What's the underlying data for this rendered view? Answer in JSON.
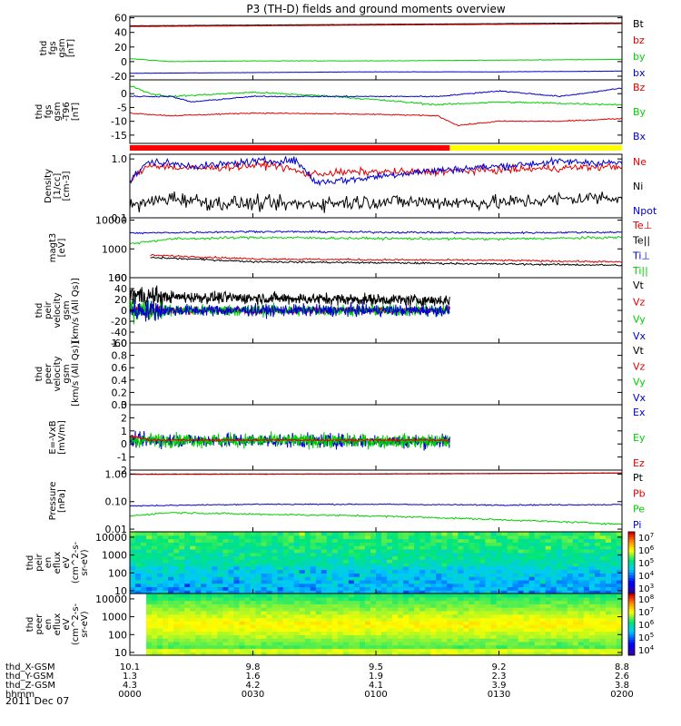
{
  "title": "P3 (TH-D) fields and ground moments overview",
  "date": "2011 Dec 07",
  "colors": {
    "black": "#000000",
    "red": "#e00000",
    "green": "#00d000",
    "blue": "#0000d0",
    "yellow": "#ffff00",
    "bar_red": "#ff0000"
  },
  "chart_data": [
    {
      "type": "line",
      "name": "fgs_gsm",
      "ylabel_lines": [
        "thd",
        "fgs",
        "gsm",
        "[nT]"
      ],
      "ylim": [
        -25,
        62
      ],
      "yticks": [
        {
          "v": 60,
          "label": "60"
        },
        {
          "v": 40,
          "label": "40"
        },
        {
          "v": 20,
          "label": "20"
        },
        {
          "v": 0,
          "label": "0"
        },
        {
          "v": -20,
          "label": "-20"
        }
      ],
      "series": [
        {
          "name": "Bt",
          "color": "black",
          "noise": 0.2,
          "x": [
            0,
            30,
            60,
            90,
            120
          ],
          "y": [
            49,
            50,
            51,
            52,
            53
          ]
        },
        {
          "name": "bz",
          "color": "red",
          "noise": 0.2,
          "x": [
            0,
            30,
            60,
            90,
            120
          ],
          "y": [
            48,
            49,
            50,
            51,
            52
          ]
        },
        {
          "name": "by",
          "color": "green",
          "noise": 0.3,
          "x": [
            0,
            10,
            30,
            60,
            90,
            120
          ],
          "y": [
            4,
            0,
            1,
            1,
            2,
            3
          ]
        },
        {
          "name": "bx",
          "color": "blue",
          "noise": 0.2,
          "x": [
            0,
            30,
            60,
            90,
            120
          ],
          "y": [
            -16,
            -15,
            -14,
            -14,
            -13
          ]
        }
      ]
    },
    {
      "type": "line",
      "name": "fgs_gsm_detrended",
      "ylabel_lines": [
        "thd",
        "fgs",
        "gsm",
        "-T96",
        "[nT]"
      ],
      "ylim": [
        -18,
        5
      ],
      "yticks": [
        {
          "v": 0,
          "label": "0"
        },
        {
          "v": -5,
          "label": "-5"
        },
        {
          "v": -10,
          "label": "-10"
        },
        {
          "v": -15,
          "label": "-15"
        }
      ],
      "series": [
        {
          "name": "Bz",
          "color": "red",
          "noise": 0.2,
          "x": [
            0,
            10,
            30,
            60,
            75,
            80,
            90,
            105,
            120
          ],
          "y": [
            -7,
            -8,
            -7,
            -7.5,
            -8,
            -11.5,
            -10,
            -10,
            -9
          ]
        },
        {
          "name": "By",
          "color": "green",
          "noise": 0.3,
          "x": [
            0,
            5,
            10,
            30,
            50,
            75,
            90,
            120
          ],
          "y": [
            3,
            0,
            -1,
            0.5,
            -1,
            -4,
            -3,
            -4
          ]
        },
        {
          "name": "Bx",
          "color": "blue",
          "noise": 0.2,
          "x": [
            0,
            10,
            15,
            30,
            60,
            75,
            90,
            105,
            120
          ],
          "y": [
            -1,
            -1,
            -3,
            -1,
            -1,
            -1,
            1,
            -1,
            2
          ]
        }
      ]
    },
    {
      "type": "log-line",
      "name": "density",
      "ylabel_lines": [
        "Density",
        "[1/cc]",
        "[cm-3]"
      ],
      "ylim": [
        0.1,
        1.2
      ],
      "yticks": [
        {
          "v": 1.0,
          "label": "1.0"
        },
        {
          "v": 0.1,
          "label": "0.1"
        }
      ],
      "series": [
        {
          "name": "Ne",
          "color": "red",
          "noise": 0.06,
          "x": [
            0,
            5,
            12,
            18,
            35,
            43,
            55,
            70,
            90,
            120
          ],
          "y": [
            0.4,
            0.8,
            0.7,
            0.7,
            0.8,
            0.55,
            0.6,
            0.6,
            0.65,
            0.75
          ]
        },
        {
          "name": "Ni",
          "color": "black",
          "noise": 0.12,
          "x": [
            0,
            10,
            20,
            40,
            60,
            90,
            120
          ],
          "y": [
            0.15,
            0.22,
            0.18,
            0.17,
            0.19,
            0.18,
            0.23
          ]
        },
        {
          "name": "Npot",
          "color": "blue",
          "noise": 0.06,
          "x": [
            0,
            5,
            12,
            18,
            30,
            40,
            45,
            55,
            70,
            90,
            105,
            120
          ],
          "y": [
            0.4,
            0.9,
            0.8,
            0.75,
            0.9,
            0.95,
            0.4,
            0.45,
            0.6,
            0.75,
            0.9,
            0.85
          ]
        }
      ]
    },
    {
      "type": "log-line",
      "name": "temperature",
      "ylabel_lines": [
        "magt3",
        "[eV]"
      ],
      "ylim": [
        100,
        12000
      ],
      "yticks": [
        {
          "v": 10000,
          "label": "10000"
        },
        {
          "v": 1000,
          "label": "1000"
        },
        {
          "v": 100,
          "label": "100"
        }
      ],
      "series": [
        {
          "name": "Te⊥",
          "color": "red",
          "noise": 0.03,
          "start": 5,
          "x": [
            5,
            30,
            60,
            90,
            120
          ],
          "y": [
            600,
            450,
            420,
            400,
            350
          ]
        },
        {
          "name": "Te||",
          "color": "black",
          "noise": 0.03,
          "start": 5,
          "x": [
            5,
            30,
            60,
            90,
            120
          ],
          "y": [
            500,
            360,
            330,
            300,
            270
          ]
        },
        {
          "name": "Ti⊥",
          "color": "blue",
          "noise": 0.03,
          "x": [
            0,
            30,
            60,
            90,
            120
          ],
          "y": [
            3500,
            4000,
            3800,
            3600,
            3800
          ]
        },
        {
          "name": "Ti||",
          "color": "green",
          "noise": 0.04,
          "x": [
            0,
            10,
            30,
            60,
            90,
            120
          ],
          "y": [
            1500,
            2200,
            2500,
            2300,
            2200,
            2500
          ]
        }
      ]
    },
    {
      "type": "line",
      "name": "peir_velocity",
      "ylabel_lines": [
        "thd",
        "peir",
        "velocity",
        "gsm",
        "[km/s (All Qs)]"
      ],
      "ylim": [
        -60,
        60
      ],
      "yticks": [
        {
          "v": 60,
          "label": "60"
        },
        {
          "v": 40,
          "label": "40"
        },
        {
          "v": 20,
          "label": "20"
        },
        {
          "v": 0,
          "label": "0"
        },
        {
          "v": -20,
          "label": "-20"
        },
        {
          "v": -40,
          "label": "-40"
        },
        {
          "v": -60,
          "label": "-60"
        }
      ],
      "end": 78,
      "series": [
        {
          "name": "Vt",
          "color": "black",
          "noise": 10,
          "x": [
            0,
            5,
            78
          ],
          "y": [
            30,
            25,
            18
          ]
        },
        {
          "name": "Vz",
          "color": "red",
          "noise": 6,
          "x": [
            0,
            78
          ],
          "y": [
            0,
            0
          ]
        },
        {
          "name": "Vy",
          "color": "green",
          "noise": 10,
          "x": [
            0,
            78
          ],
          "y": [
            0,
            0
          ]
        },
        {
          "name": "Vx",
          "color": "blue",
          "noise": 10,
          "x": [
            0,
            78
          ],
          "y": [
            0,
            0
          ]
        }
      ]
    },
    {
      "type": "line",
      "name": "peer_velocity",
      "ylabel_lines": [
        "thd",
        "peer",
        "velocity",
        "gsm",
        "[km/s (All Qs)]"
      ],
      "ylim": [
        0,
        1
      ],
      "yticks": [
        {
          "v": 1.0,
          "label": "1.0"
        },
        {
          "v": 0.8,
          "label": "0.8"
        },
        {
          "v": 0.6,
          "label": "0.6"
        },
        {
          "v": 0.4,
          "label": "0.4"
        },
        {
          "v": 0.2,
          "label": "0.2"
        },
        {
          "v": 0.0,
          "label": "0.0"
        }
      ],
      "series": [
        {
          "name": "Vt",
          "color": "black",
          "x": [],
          "y": []
        },
        {
          "name": "Vz",
          "color": "red",
          "x": [],
          "y": []
        },
        {
          "name": "Vy",
          "color": "green",
          "x": [],
          "y": []
        },
        {
          "name": "Vx",
          "color": "blue",
          "x": [],
          "y": []
        }
      ]
    },
    {
      "type": "line",
      "name": "efield",
      "ylabel_lines": [
        "E=-VxB",
        "[mV/m]"
      ],
      "ylim": [
        -2,
        3
      ],
      "yticks": [
        {
          "v": 3,
          "label": "3"
        },
        {
          "v": 2,
          "label": "2"
        },
        {
          "v": 1,
          "label": "1"
        },
        {
          "v": 0,
          "label": "0"
        },
        {
          "v": -1,
          "label": "-1"
        },
        {
          "v": -2,
          "label": "-2"
        }
      ],
      "end": 78,
      "series": [
        {
          "name": "Ex",
          "color": "blue",
          "noise": 0.5,
          "x": [
            0,
            78
          ],
          "y": [
            0.3,
            0.2
          ]
        },
        {
          "name": "Ey",
          "color": "green",
          "noise": 0.5,
          "x": [
            0,
            78
          ],
          "y": [
            0.3,
            0.2
          ]
        },
        {
          "name": "Ez",
          "color": "red",
          "noise": 0.08,
          "x": [
            0,
            5,
            78
          ],
          "y": [
            0.6,
            0.3,
            0.3
          ]
        }
      ]
    },
    {
      "type": "log-line",
      "name": "pressure",
      "ylabel_lines": [
        "Pressure",
        "[nPa]"
      ],
      "ylim": [
        0.008,
        1.4
      ],
      "yticks": [
        {
          "v": 1.0,
          "label": "1.00"
        },
        {
          "v": 0.1,
          "label": "0.10"
        },
        {
          "v": 0.01,
          "label": "0.01"
        }
      ],
      "series": [
        {
          "name": "Pt",
          "color": "black",
          "noise": 0.005,
          "x": [
            0,
            60,
            120
          ],
          "y": [
            1.0,
            1.02,
            1.1
          ]
        },
        {
          "name": "Pb",
          "color": "red",
          "noise": 0.005,
          "x": [
            0,
            60,
            120
          ],
          "y": [
            0.98,
            1.0,
            1.08
          ]
        },
        {
          "name": "Pe",
          "color": "green",
          "noise": 0.03,
          "x": [
            0,
            10,
            30,
            60,
            90,
            120
          ],
          "y": [
            0.03,
            0.04,
            0.035,
            0.03,
            0.022,
            0.015
          ]
        },
        {
          "name": "Pi",
          "color": "blue",
          "noise": 0.02,
          "x": [
            0,
            30,
            60,
            90,
            120
          ],
          "y": [
            0.07,
            0.08,
            0.08,
            0.075,
            0.078
          ]
        }
      ]
    },
    {
      "type": "heatmap",
      "name": "peir_en_eflux",
      "ylabel_lines": [
        "thd",
        "peir",
        "en",
        "eflux",
        "eV",
        "(cm^2-s-",
        "sr-eV)"
      ],
      "ylim": [
        7,
        20000
      ],
      "yticks": [
        {
          "v": 10000,
          "label": "10000"
        },
        {
          "v": 1000,
          "label": "1000"
        },
        {
          "v": 100,
          "label": "100"
        },
        {
          "v": 10,
          "label": "10"
        }
      ],
      "colorbar_ticks": [
        "10^7",
        "10^6",
        "10^5",
        "10^4",
        "10^3"
      ],
      "colorbar_range": [
        2.5,
        7.5
      ]
    },
    {
      "type": "heatmap",
      "name": "peer_en_eflux",
      "ylabel_lines": [
        "thd",
        "peer",
        "en",
        "eflux",
        "eV",
        "(cm^2-s-",
        "sr-eV)"
      ],
      "ylim": [
        7,
        20000
      ],
      "yticks": [
        {
          "v": 10000,
          "label": "10000"
        },
        {
          "v": 1000,
          "label": "1000"
        },
        {
          "v": 100,
          "label": "100"
        },
        {
          "v": 10,
          "label": "10"
        }
      ],
      "colorbar_ticks": [
        "10^8",
        "10^7",
        "10^6",
        "10^5",
        "10^4"
      ],
      "colorbar_range": [
        3.5,
        8.5
      ]
    }
  ],
  "x_axis": {
    "xlim": [
      0,
      120
    ],
    "ticks": [
      0,
      30,
      60,
      90,
      120
    ],
    "rows": [
      {
        "label": "thd_X-GSM",
        "values": [
          "10.1",
          "9.8",
          "9.5",
          "9.2",
          "8.8"
        ]
      },
      {
        "label": "thd_Y-GSM",
        "values": [
          "1.3",
          "1.6",
          "1.9",
          "2.3",
          "2.6"
        ]
      },
      {
        "label": "thd_Z-GSM",
        "values": [
          "4.3",
          "4.2",
          "4.1",
          "3.9",
          "3.8"
        ]
      },
      {
        "label": "hhmm",
        "values": [
          "0000",
          "0030",
          "0100",
          "0130",
          "0200"
        ]
      }
    ]
  },
  "mode_bar": {
    "segments": [
      {
        "x0": 0,
        "x1": 78,
        "color": "bar_red"
      },
      {
        "x0": 78,
        "x1": 120,
        "color": "yellow"
      }
    ]
  }
}
